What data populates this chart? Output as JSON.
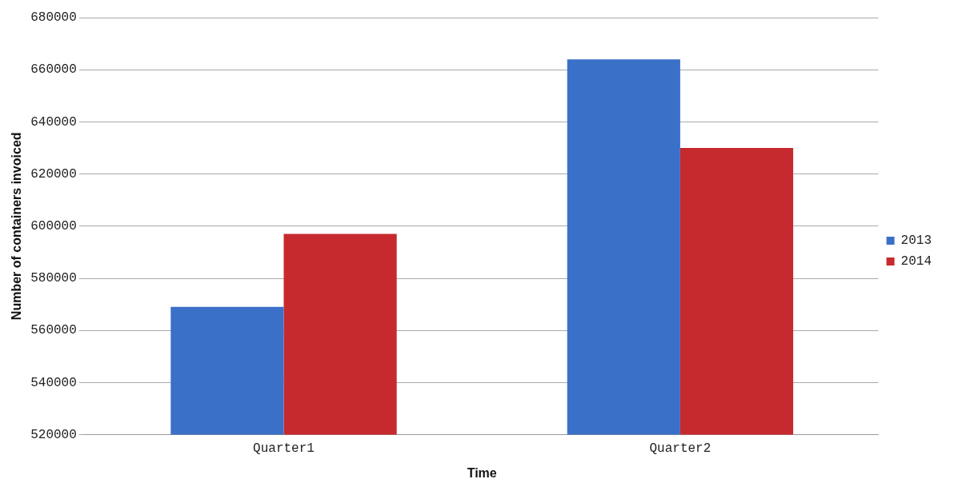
{
  "chart_data": {
    "type": "bar",
    "xlabel": "Time",
    "ylabel": "Number of containers invoiced",
    "categories": [
      "Quarter1",
      "Quarter2"
    ],
    "series": [
      {
        "name": "2013",
        "color": "#3a70c8",
        "values": [
          569000,
          664000
        ]
      },
      {
        "name": "2014",
        "color": "#c62a2e",
        "values": [
          597000,
          630000
        ]
      }
    ],
    "ylim": [
      520000,
      680000
    ],
    "yticks": [
      520000,
      540000,
      560000,
      580000,
      600000,
      620000,
      640000,
      660000,
      680000
    ],
    "grid": "y",
    "legend": "right"
  }
}
